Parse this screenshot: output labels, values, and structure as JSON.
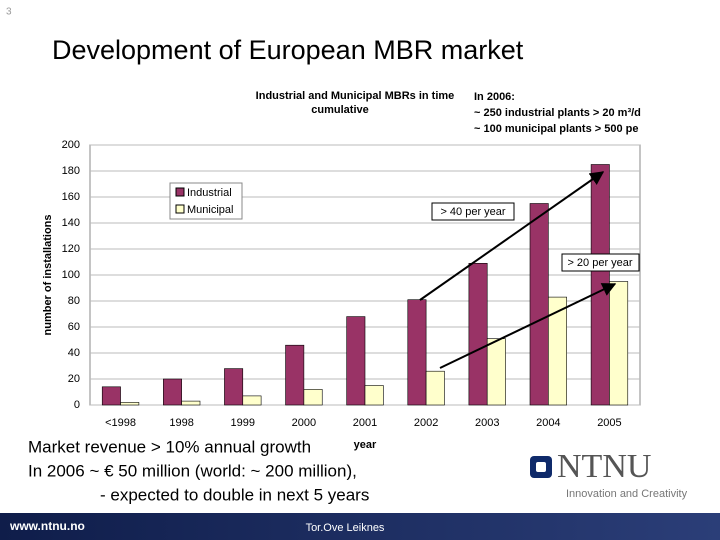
{
  "slide": {
    "number": "3",
    "title": "Development of European MBR market",
    "note": [
      "In 2006:",
      "~ 250 industrial plants > 20 m³/d",
      "~ 100 municipal plants > 500 pe"
    ],
    "body": [
      "Market revenue > 10% annual growth",
      "In 2006 ~ € 50 million (world: ~ 200 million),",
      "- expected to double in next 5 years"
    ],
    "footer": {
      "url": "www.ntnu.no",
      "author": "Tor.Ove Leiknes"
    },
    "logo": {
      "name": "NTNU",
      "tagline": "Innovation and Creativity"
    }
  },
  "chart_data": {
    "type": "bar",
    "title": [
      "Industrial and Municipal MBRs in time",
      "cumulative"
    ],
    "x_label": "year",
    "y_label": "number of installations",
    "categories": [
      "<1998",
      "1998",
      "1999",
      "2000",
      "2001",
      "2002",
      "2003",
      "2004",
      "2005"
    ],
    "series": [
      {
        "name": "Industrial",
        "color": "#993366",
        "values": [
          14,
          20,
          28,
          46,
          68,
          81,
          109,
          155,
          185
        ]
      },
      {
        "name": "Municipal",
        "color": "#ffffcc",
        "values": [
          2,
          3,
          7,
          12,
          15,
          26,
          51,
          83,
          95
        ]
      }
    ],
    "ylim": [
      0,
      200
    ],
    "yticks": [
      0,
      20,
      40,
      60,
      80,
      100,
      120,
      140,
      160,
      180,
      200
    ],
    "grid": true,
    "annotations": [
      "> 40 per year",
      "> 20 per year"
    ]
  }
}
